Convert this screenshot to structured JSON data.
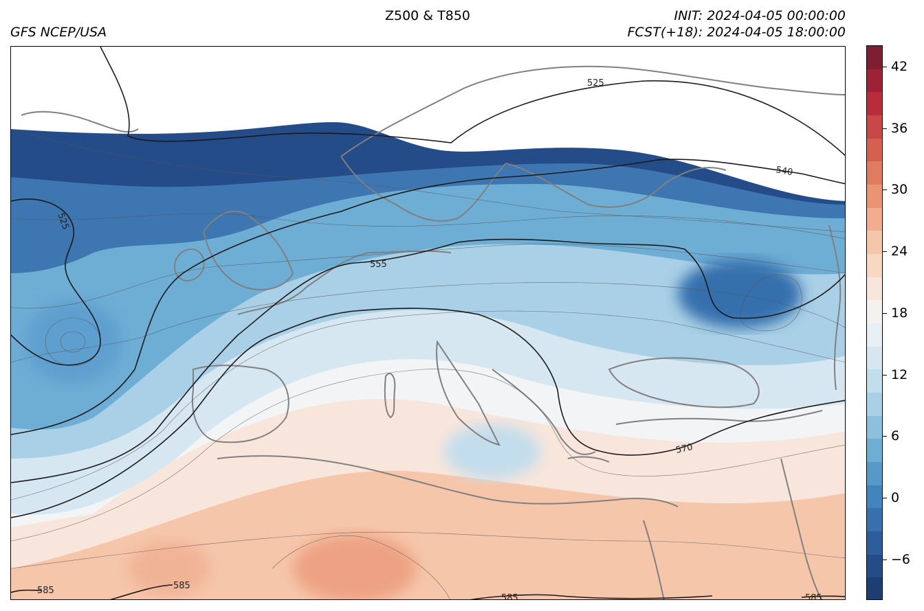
{
  "header": {
    "product": "Z500 & T850",
    "model": "GFS NCEP/USA",
    "init_label": "INIT: 2024-04-05 00:00:00",
    "fcst_label": "FCST(+18): 2024-04-05 18:00:00"
  },
  "colorbar": {
    "ticks": [
      "42",
      "36",
      "30",
      "24",
      "18",
      "12",
      "6",
      "0",
      "−6"
    ],
    "colors": [
      "#7f1d33",
      "#9d2236",
      "#b92c3c",
      "#c94747",
      "#d5604f",
      "#e07b5f",
      "#ea9474",
      "#f2ad8e",
      "#f6c6aa",
      "#f8d8c3",
      "#f8e6dc",
      "#f5f1ee",
      "#e8eff5",
      "#d6e7f1",
      "#c2ddec",
      "#a9d0e6",
      "#8dc0dd",
      "#6eadd4",
      "#5699c8",
      "#4484bc",
      "#3670ad",
      "#2d5d9b",
      "#244c88",
      "#1d3d73"
    ]
  },
  "contour_labels": {
    "l525_north": "525",
    "l525_west": "525",
    "l540": "540",
    "l555": "555",
    "l570": "570",
    "l585_a": "585",
    "l585_b": "585",
    "l585_c": "585",
    "l585_d": "585"
  },
  "colors": {
    "land_outline": "#808080",
    "contour_major": "#1a1a1a",
    "contour_minor": "#555555"
  }
}
